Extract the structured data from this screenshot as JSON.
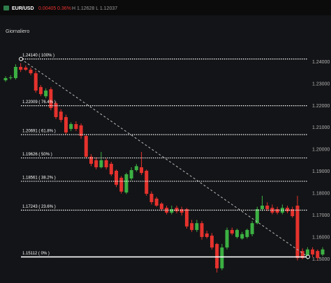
{
  "header": {
    "symbol": "EUR/USD",
    "change": "0.00405",
    "change_pct": "0.36%",
    "range": "H 1.12628 L 1.12037"
  },
  "chart_data": {
    "type": "candlestick",
    "title": "Giornaliero",
    "ylim": [
      1.1392,
      1.2556
    ],
    "yticks": [
      {
        "value": 1.24,
        "label": "1.24000"
      },
      {
        "value": 1.23,
        "label": "1.23000"
      },
      {
        "value": 1.22,
        "label": "1.22000"
      },
      {
        "value": 1.21,
        "label": "1.21000"
      },
      {
        "value": 1.2,
        "label": "1.20000"
      },
      {
        "value": 1.19,
        "label": "1.19000"
      },
      {
        "value": 1.18,
        "label": "1.18000"
      },
      {
        "value": 1.17,
        "label": "1.17000"
      },
      {
        "value": 1.16,
        "label": "1.16000"
      },
      {
        "value": 1.15,
        "label": "1.15000"
      }
    ],
    "grid": false,
    "up_color": "#3cb043",
    "down_color": "#e5322d",
    "fib_color": "#ffffff",
    "trend_color": "#bbbbbb",
    "fib_levels": [
      {
        "value": 1.2414,
        "label": "1.24140 ( 100% )"
      },
      {
        "value": 1.22009,
        "label": "1.22009 ( 76.4% )"
      },
      {
        "value": 1.20691,
        "label": "1.20691 ( 61.8% )"
      },
      {
        "value": 1.19626,
        "label": "1.19626 ( 50% )"
      },
      {
        "value": 1.18561,
        "label": "1.18561 ( 38.2% )"
      },
      {
        "value": 1.17243,
        "label": "1.17243 ( 23.6% )"
      },
      {
        "value": 1.15112,
        "label": "1.15112 ( 0% )"
      }
    ],
    "open": [
      1.2317,
      1.2327,
      1.2327,
      1.2378,
      1.2375,
      1.2365,
      1.2349,
      1.2286,
      1.2244,
      1.2276,
      1.2212,
      1.2174,
      1.2149,
      1.2095,
      1.2117,
      1.2111,
      1.2063,
      1.1968,
      1.1952,
      1.192,
      1.1952,
      1.1936,
      1.1904,
      1.1872,
      1.1805,
      1.1869,
      1.1907,
      1.192,
      1.1904,
      1.1799,
      1.1777,
      1.1754,
      1.1735,
      1.1713,
      1.1735,
      1.1729,
      1.1729,
      1.1665,
      1.1634,
      1.1665,
      1.1618,
      1.1608,
      1.157,
      1.1459,
      1.1554,
      1.1634,
      1.1602,
      1.1595,
      1.1602,
      1.1615,
      1.1665,
      1.1729,
      1.1745,
      1.1735,
      1.1729,
      1.1713,
      1.1735,
      1.1729,
      1.1745,
      1.1538,
      1.1506,
      1.1545,
      1.1538,
      1.1522
    ],
    "high": [
      1.2335,
      1.234,
      1.239,
      1.2395,
      1.2385,
      1.2375,
      1.236,
      1.2295,
      1.228,
      1.2285,
      1.222,
      1.2185,
      1.216,
      1.2125,
      1.213,
      1.212,
      1.207,
      1.198,
      1.1965,
      1.199,
      1.196,
      1.1945,
      1.191,
      1.188,
      1.1895,
      1.192,
      1.1935,
      1.199,
      1.191,
      1.181,
      1.1785,
      1.176,
      1.1745,
      1.1745,
      1.1745,
      1.174,
      1.1735,
      1.168,
      1.168,
      1.1675,
      1.163,
      1.162,
      1.1575,
      1.157,
      1.1645,
      1.1645,
      1.164,
      1.1625,
      1.164,
      1.1675,
      1.174,
      1.179,
      1.176,
      1.175,
      1.174,
      1.175,
      1.1745,
      1.174,
      1.179,
      1.155,
      1.1555,
      1.1555,
      1.1545,
      1.1555
    ],
    "low": [
      1.231,
      1.232,
      1.232,
      1.2355,
      1.236,
      1.234,
      1.226,
      1.2245,
      1.2235,
      1.218,
      1.214,
      1.2125,
      1.207,
      1.2085,
      1.2085,
      1.205,
      1.196,
      1.1925,
      1.191,
      1.1915,
      1.191,
      1.188,
      1.183,
      1.18,
      1.1798,
      1.186,
      1.19,
      1.1885,
      1.179,
      1.175,
      1.174,
      1.172,
      1.1705,
      1.1705,
      1.171,
      1.17,
      1.164,
      1.1625,
      1.1625,
      1.159,
      1.1595,
      1.1545,
      1.144,
      1.145,
      1.1545,
      1.161,
      1.1595,
      1.159,
      1.1595,
      1.1605,
      1.166,
      1.172,
      1.172,
      1.1705,
      1.1705,
      1.1705,
      1.171,
      1.169,
      1.1495,
      1.15,
      1.15,
      1.151,
      1.1495,
      1.1515
    ],
    "close": [
      1.2327,
      1.233,
      1.2378,
      1.2365,
      1.2365,
      1.2349,
      1.227,
      1.2254,
      1.227,
      1.219,
      1.2149,
      1.2136,
      1.2079,
      1.2117,
      1.2095,
      1.2063,
      1.1968,
      1.1936,
      1.192,
      1.1952,
      1.192,
      1.1888,
      1.184,
      1.1809,
      1.1888,
      1.1907,
      1.1925,
      1.1894,
      1.1799,
      1.1761,
      1.1745,
      1.1729,
      1.1713,
      1.1729,
      1.1719,
      1.1713,
      1.165,
      1.1634,
      1.1665,
      1.1602,
      1.1602,
      1.1554,
      1.1459,
      1.1554,
      1.1634,
      1.1618,
      1.1634,
      1.1615,
      1.1634,
      1.1665,
      1.1729,
      1.1745,
      1.1729,
      1.1713,
      1.1713,
      1.1735,
      1.1719,
      1.1697,
      1.1506,
      1.1506,
      1.1545,
      1.1522,
      1.1506,
      1.1545
    ]
  }
}
